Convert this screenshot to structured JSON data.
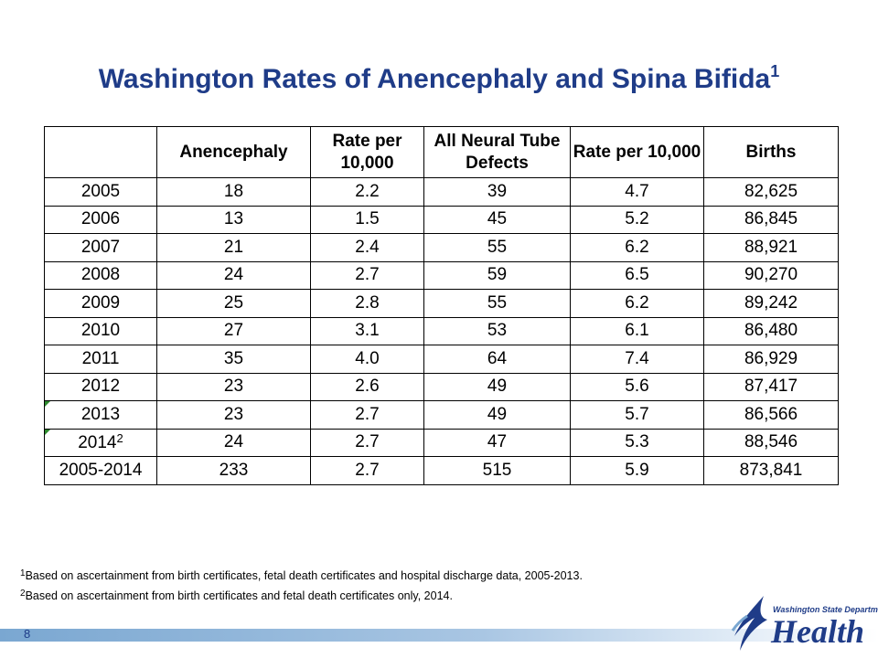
{
  "title": {
    "text": "Washington Rates of Anencephaly and Spina Bifida",
    "sup": "1"
  },
  "table": {
    "headers": [
      "",
      "Anencephaly",
      "Rate per 10,000",
      "All Neural Tube Defects",
      "Rate per 10,000",
      "Births"
    ],
    "rows": [
      {
        "year": "2005",
        "sup": "",
        "flag": false,
        "cells": [
          "18",
          "2.2",
          "39",
          "4.7",
          "82,625"
        ]
      },
      {
        "year": "2006",
        "sup": "",
        "flag": false,
        "cells": [
          "13",
          "1.5",
          "45",
          "5.2",
          "86,845"
        ]
      },
      {
        "year": "2007",
        "sup": "",
        "flag": false,
        "cells": [
          "21",
          "2.4",
          "55",
          "6.2",
          "88,921"
        ]
      },
      {
        "year": "2008",
        "sup": "",
        "flag": false,
        "cells": [
          "24",
          "2.7",
          "59",
          "6.5",
          "90,270"
        ]
      },
      {
        "year": "2009",
        "sup": "",
        "flag": false,
        "cells": [
          "25",
          "2.8",
          "55",
          "6.2",
          "89,242"
        ]
      },
      {
        "year": "2010",
        "sup": "",
        "flag": false,
        "cells": [
          "27",
          "3.1",
          "53",
          "6.1",
          "86,480"
        ]
      },
      {
        "year": "2011",
        "sup": "",
        "flag": false,
        "cells": [
          "35",
          "4.0",
          "64",
          "7.4",
          "86,929"
        ]
      },
      {
        "year": "2012",
        "sup": "",
        "flag": false,
        "cells": [
          "23",
          "2.6",
          "49",
          "5.6",
          "87,417"
        ]
      },
      {
        "year": "2013",
        "sup": "",
        "flag": true,
        "cells": [
          "23",
          "2.7",
          "49",
          "5.7",
          "86,566"
        ]
      },
      {
        "year": "2014",
        "sup": "2",
        "flag": true,
        "cells": [
          "24",
          "2.7",
          "47",
          "5.3",
          "88,546"
        ]
      },
      {
        "year": "2005-2014",
        "sup": "",
        "flag": false,
        "cells": [
          "233",
          "2.7",
          "515",
          "5.9",
          "873,841"
        ]
      }
    ]
  },
  "footnotes": [
    {
      "sup": "1",
      "text": "Based on ascertainment from birth  certificates,  fetal death certificates and hospital discharge data, 2005-2013."
    },
    {
      "sup": "2",
      "text": "Based on ascertainment from birth certificates and fetal death certificates only, 2014."
    }
  ],
  "page_number": "8",
  "logo": {
    "org": "Washington State Department of",
    "word": "Health",
    "icon": "health-swoosh-icon"
  },
  "colors": {
    "title": "#1f3c88",
    "flag": "#2e8b2e",
    "bar": "#7aa7d1"
  }
}
